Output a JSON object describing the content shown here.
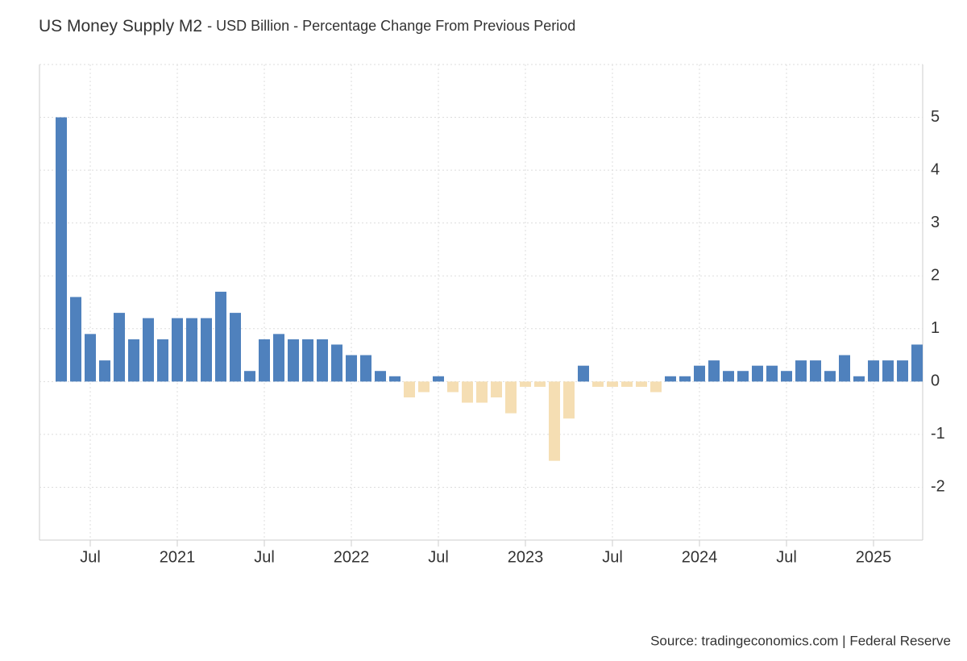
{
  "chart_data": {
    "type": "bar",
    "title": "US Money Supply M2",
    "subtitle": "- USD Billion - Percentage Change From Previous Period",
    "source": "Source: tradingeconomics.com | Federal Reserve",
    "categories": [
      null,
      null,
      "Jul",
      null,
      null,
      null,
      null,
      null,
      "2021",
      null,
      null,
      null,
      null,
      null,
      "Jul",
      null,
      null,
      null,
      null,
      null,
      "2022",
      null,
      null,
      null,
      null,
      null,
      "Jul",
      null,
      null,
      null,
      null,
      null,
      "2023",
      null,
      null,
      null,
      null,
      null,
      "Jul",
      null,
      null,
      null,
      null,
      null,
      "2024",
      null,
      null,
      null,
      null,
      null,
      "Jul",
      null,
      null,
      null,
      null,
      null,
      "2025",
      null,
      null,
      null
    ],
    "values": [
      5.0,
      1.6,
      0.9,
      0.4,
      1.3,
      0.8,
      1.2,
      0.8,
      1.2,
      1.2,
      1.2,
      1.7,
      1.3,
      0.2,
      0.8,
      0.9,
      0.8,
      0.8,
      0.8,
      0.7,
      0.5,
      0.5,
      0.2,
      0.1,
      -0.3,
      -0.2,
      0.1,
      -0.2,
      -0.4,
      -0.4,
      -0.3,
      -0.6,
      -0.1,
      -0.1,
      -1.5,
      -0.7,
      0.3,
      -0.1,
      -0.1,
      -0.1,
      -0.1,
      -0.2,
      0.1,
      0.1,
      0.3,
      0.4,
      0.2,
      0.2,
      0.3,
      0.3,
      0.2,
      0.4,
      0.4,
      0.2,
      0.5,
      0.1,
      0.4,
      0.4,
      0.4,
      0.7
    ],
    "color": "#4f81bd",
    "negative_color": "#f5deb3",
    "ylim": [
      -3,
      6
    ],
    "yticks": [
      -2,
      -1,
      0,
      1,
      2,
      3,
      4,
      5
    ],
    "grid": true
  }
}
